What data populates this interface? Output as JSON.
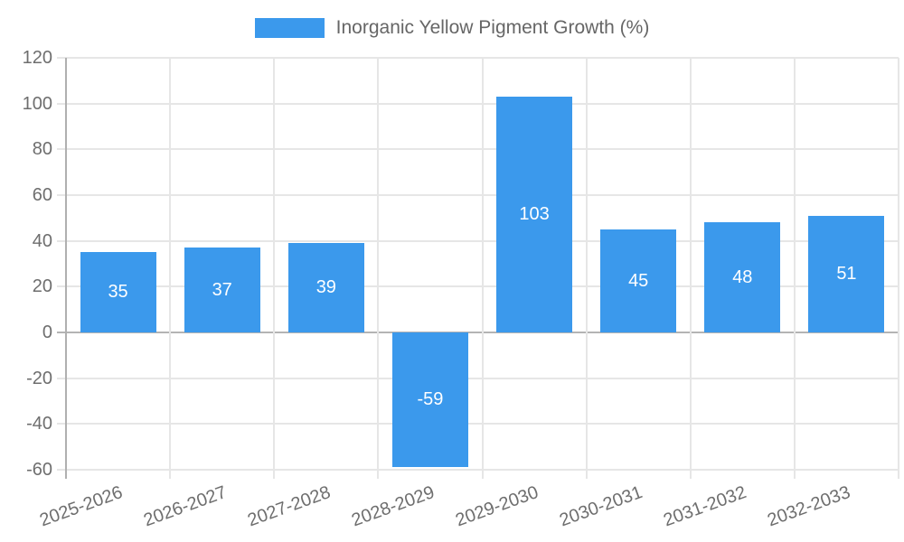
{
  "chart_data": {
    "type": "bar",
    "title": "",
    "series_name": "Inorganic Yellow Pigment Growth (%)",
    "categories": [
      "2025-2026",
      "2026-2027",
      "2027-2028",
      "2028-2029",
      "2029-2030",
      "2030-2031",
      "2031-2032",
      "2032-2033"
    ],
    "values": [
      35,
      37,
      39,
      -59,
      103,
      45,
      48,
      51
    ],
    "xlabel": "",
    "ylabel": "",
    "ylim": [
      -60,
      120
    ],
    "y_ticks": [
      120,
      100,
      80,
      60,
      40,
      20,
      0,
      -20,
      -40,
      -60
    ],
    "grid": true,
    "legend_position": "top",
    "bar_labels_inside": true,
    "colors": {
      "bar": "#3B99EC",
      "grid": "#e6e6e6",
      "zero_line": "#b4b4b4",
      "axis": "#b0b0b0",
      "tick_label": "#6e6e6e",
      "legend_text": "#666666",
      "bar_label": "#ffffff",
      "background": "#ffffff"
    }
  }
}
